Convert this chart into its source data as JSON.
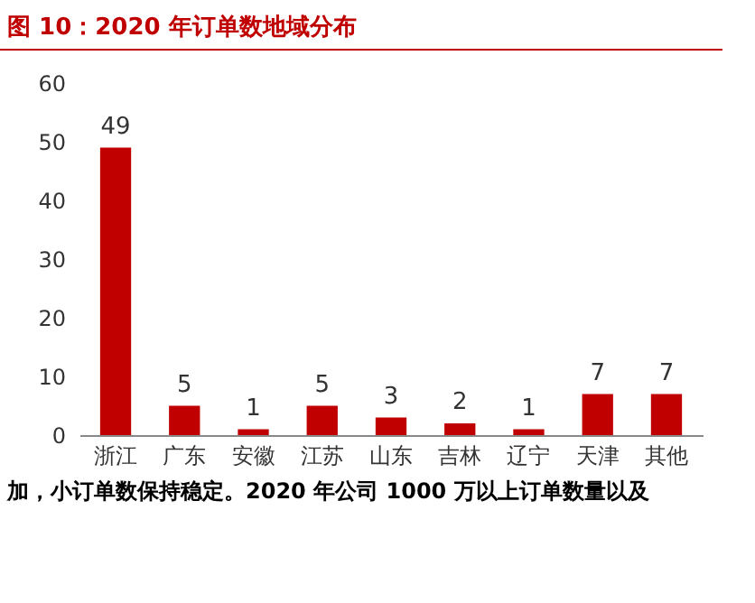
{
  "chart_data": {
    "type": "bar",
    "title": "图 10：2020 年订单数地域分布",
    "categories": [
      "浙江",
      "广东",
      "安徽",
      "江苏",
      "山东",
      "吉林",
      "辽宁",
      "天津",
      "其他"
    ],
    "values": [
      49,
      5,
      1,
      5,
      3,
      2,
      1,
      7,
      7
    ],
    "color": "#c00000",
    "ylim": [
      0,
      60
    ],
    "yticks": [
      0,
      10,
      20,
      30,
      40,
      50,
      60
    ],
    "data_labels": true,
    "grid": false,
    "annotations": [
      "加，小订单数保持稳定。2020 年公司 1000 万以上订单数量以及"
    ]
  }
}
